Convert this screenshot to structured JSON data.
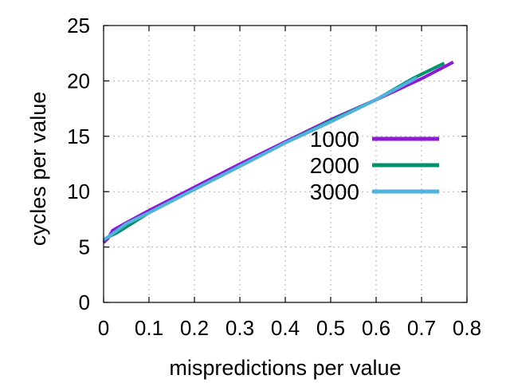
{
  "chart_data": {
    "type": "line",
    "xlabel": "mispredictions per value",
    "ylabel": "cycles per value",
    "xlim": [
      0,
      0.8
    ],
    "ylim": [
      0,
      25
    ],
    "xticks": [
      0,
      0.1,
      0.2,
      0.3,
      0.4,
      0.5,
      0.6,
      0.7,
      0.8
    ],
    "xtick_labels": [
      "0",
      "0.1",
      "0.2",
      "0.3",
      "0.4",
      "0.5",
      "0.6",
      "0.7",
      "0.8"
    ],
    "yticks": [
      0,
      5,
      10,
      15,
      20,
      25
    ],
    "ytick_labels": [
      "0",
      "5",
      "10",
      "15",
      "20",
      "25"
    ],
    "grid": true,
    "legend_position": "center-right",
    "series": [
      {
        "name": "1000",
        "color": "#8c1ad2",
        "x": [
          0.0,
          0.01,
          0.02,
          0.05,
          0.1,
          0.2,
          0.3,
          0.4,
          0.5,
          0.6,
          0.7,
          0.77
        ],
        "y": [
          5.4,
          5.8,
          6.5,
          7.2,
          8.3,
          10.4,
          12.5,
          14.5,
          16.5,
          18.3,
          20.2,
          21.7
        ]
      },
      {
        "name": "2000",
        "color": "#00936b",
        "x": [
          0.0,
          0.01,
          0.03,
          0.1,
          0.2,
          0.3,
          0.4,
          0.5,
          0.6,
          0.68,
          0.75
        ],
        "y": [
          5.6,
          5.9,
          6.3,
          8.1,
          10.2,
          12.3,
          14.4,
          16.4,
          18.3,
          20.2,
          21.6
        ]
      },
      {
        "name": "3000",
        "color": "#52b2dd",
        "x": [
          0.0,
          0.01,
          0.02,
          0.05,
          0.1,
          0.2,
          0.3,
          0.4,
          0.5,
          0.6,
          0.69
        ],
        "y": [
          5.7,
          5.9,
          6.2,
          7.1,
          8.1,
          10.2,
          12.3,
          14.4,
          16.3,
          18.3,
          20.3
        ]
      }
    ]
  }
}
